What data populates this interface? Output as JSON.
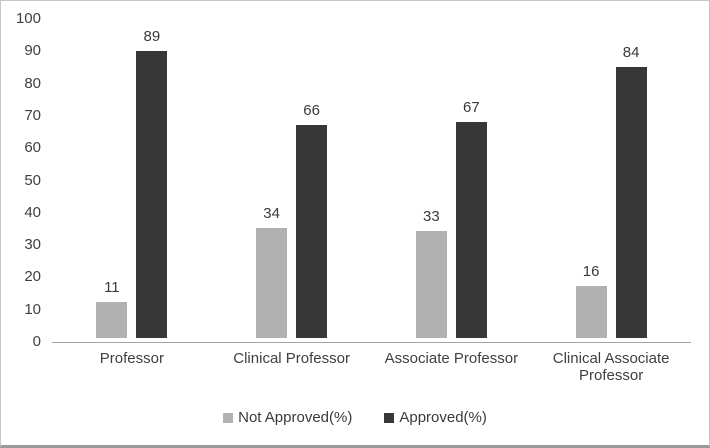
{
  "chart_data": {
    "type": "bar",
    "title": "",
    "xlabel": "",
    "ylabel": "",
    "categories": [
      "Professor",
      "Clinical Professor",
      "Associate Professor",
      "Clinical Associate Professor"
    ],
    "series": [
      {
        "name": "Not Approved(%)",
        "color": "#b1b1b1",
        "values": [
          11,
          34,
          33,
          16
        ]
      },
      {
        "name": "Approved(%)",
        "color": "#373737",
        "values": [
          89,
          66,
          67,
          84
        ]
      }
    ],
    "ylim": [
      0,
      100
    ],
    "yticks": [
      0,
      10,
      20,
      30,
      40,
      50,
      60,
      70,
      80,
      90,
      100
    ],
    "grid": false,
    "value_labels": true,
    "legend_position": "bottom"
  },
  "colors": {
    "text": "#3f3f3f",
    "axis_line": "#a6a6a6",
    "frame_border": "#c6c6c6",
    "frame_border_bottom": "#9a9a9a",
    "background": "#ffffff"
  }
}
